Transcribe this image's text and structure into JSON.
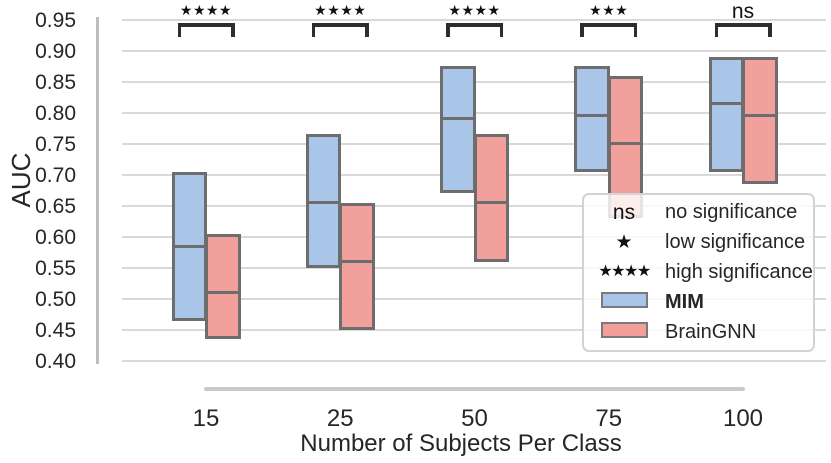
{
  "chart_data": {
    "type": "grouped_boxplot",
    "xlabel": "Number of Subjects Per Class",
    "ylabel": "AUC",
    "categories": [
      "15",
      "25",
      "50",
      "75",
      "100"
    ],
    "y_ticks": [
      0.95,
      0.9,
      0.85,
      0.8,
      0.75,
      0.7,
      0.65,
      0.6,
      0.55,
      0.5,
      0.45,
      0.4
    ],
    "ylim": [
      0.4,
      0.95
    ],
    "grid": true,
    "series": [
      {
        "name": "MIM",
        "color": "#a9c6e8",
        "boxes": [
          {
            "q1": 0.465,
            "median": 0.585,
            "q3": 0.705
          },
          {
            "q1": 0.55,
            "median": 0.655,
            "q3": 0.765
          },
          {
            "q1": 0.67,
            "median": 0.79,
            "q3": 0.875
          },
          {
            "q1": 0.705,
            "median": 0.795,
            "q3": 0.875
          },
          {
            "q1": 0.705,
            "median": 0.815,
            "q3": 0.89
          }
        ]
      },
      {
        "name": "BrainGNN",
        "color": "#f1a09c",
        "boxes": [
          {
            "q1": 0.435,
            "median": 0.51,
            "q3": 0.605
          },
          {
            "q1": 0.45,
            "median": 0.56,
            "q3": 0.655
          },
          {
            "q1": 0.56,
            "median": 0.655,
            "q3": 0.765
          },
          {
            "q1": 0.63,
            "median": 0.75,
            "q3": 0.86
          },
          {
            "q1": 0.685,
            "median": 0.795,
            "q3": 0.89
          }
        ]
      }
    ],
    "significance": [
      "****",
      "****",
      "****",
      "***",
      "ns"
    ],
    "legend": {
      "items": [
        {
          "type": "text",
          "symbol": "ns",
          "label": "no significance"
        },
        {
          "type": "stars",
          "count": 1,
          "label": "low significance"
        },
        {
          "type": "stars",
          "count": 4,
          "label": "high significance"
        },
        {
          "type": "swatch",
          "series": "MIM",
          "label": "MIM",
          "bold": true
        },
        {
          "type": "swatch",
          "series": "BrainGNN",
          "label": "BrainGNN"
        }
      ]
    },
    "legend_position": "center right"
  },
  "colors": {
    "gridline": "#d9d9d9",
    "y_spine": "#bdbdbd",
    "x_axis_bar": "#c9c9c9",
    "box_border": "#6d6d6d",
    "bracket": "#2d2d2d",
    "text": "#262626",
    "legend_border": "#d3d3d3",
    "mim_fill": "#a9c6e8",
    "braingnn_fill": "#f1a09c"
  }
}
